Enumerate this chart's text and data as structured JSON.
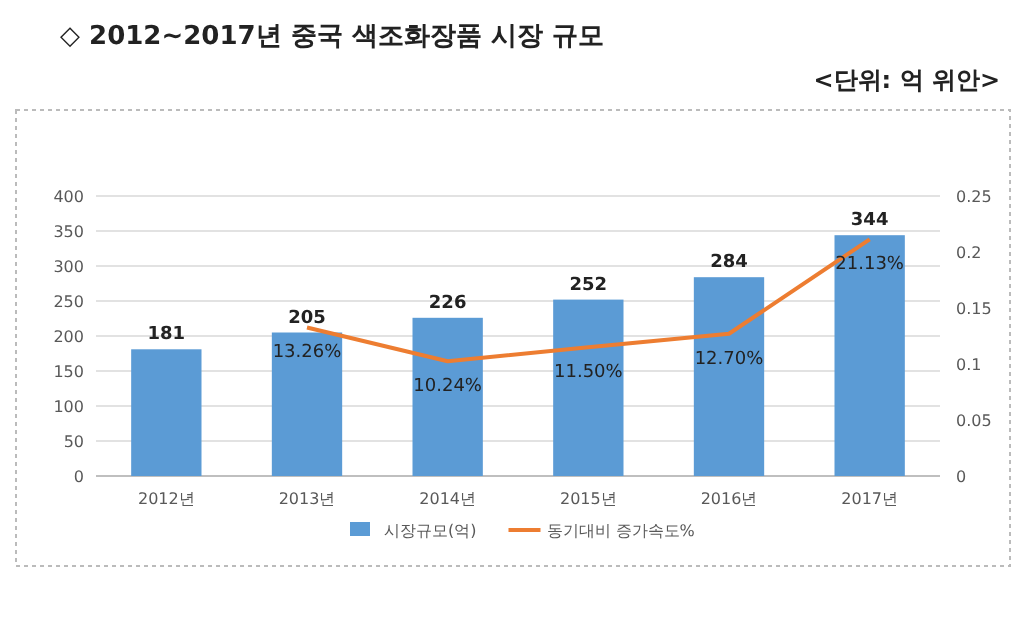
{
  "chart_data": {
    "type": "bar",
    "title": "◇ 2012~2017년 중국 색조화장품 시장 규모",
    "subtitle": "<단위: 억 위안>",
    "categories": [
      "2012년",
      "2013년",
      "2014년",
      "2015년",
      "2016년",
      "2017년"
    ],
    "series": [
      {
        "name": "시장규모(억)",
        "color": "#5b9bd5",
        "values": [
          181,
          205,
          226,
          252,
          284,
          344
        ],
        "value_labels": [
          "181",
          "205",
          "226",
          "252",
          "284",
          "344"
        ]
      },
      {
        "name": "동기대비 증가속도%",
        "type": "line",
        "axis": "y2",
        "color": "#ed7d31",
        "values": [
          null,
          0.1326,
          0.1024,
          0.115,
          0.127,
          0.2113
        ],
        "value_labels": [
          null,
          "13.26%",
          "10.24%",
          "11.50%",
          "12.70%",
          "21.13%"
        ]
      }
    ],
    "ylim": [
      0,
      400
    ],
    "yticks": [
      0,
      50,
      100,
      150,
      200,
      250,
      300,
      350,
      400
    ],
    "y2lim": [
      0,
      0.25
    ],
    "y2ticks": [
      0,
      0.05,
      0.1,
      0.15,
      0.2,
      0.25
    ],
    "grid": "y",
    "legend": "bottom"
  }
}
